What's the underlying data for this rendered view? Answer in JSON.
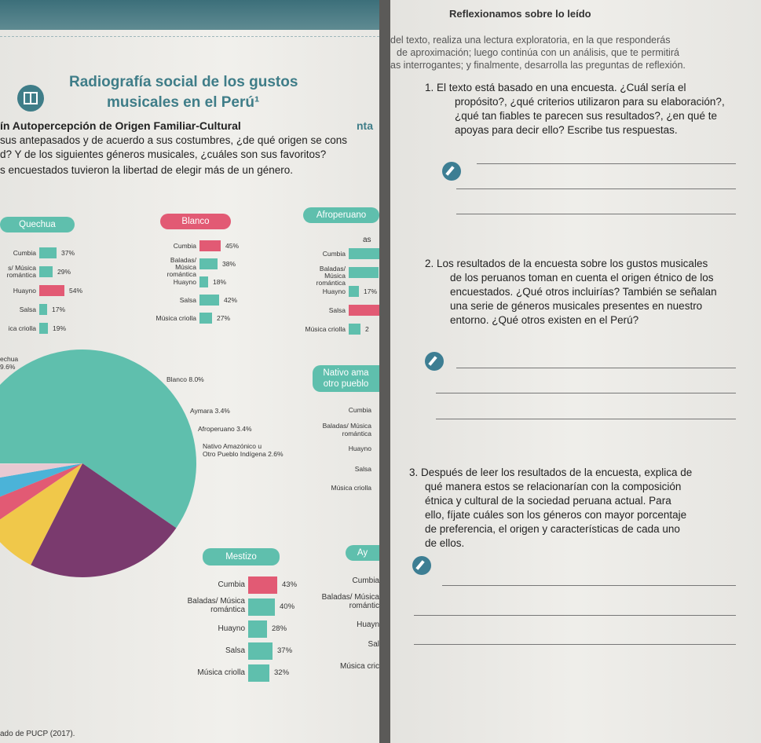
{
  "left": {
    "title_line1": "Radiografía social de los gustos",
    "title_line2": "musicales en el Perú¹",
    "section_heading": "ín Autopercepción de Origen Familiar-Cultural",
    "question_line1": "sus antepasados y de acuerdo a sus costumbres, ¿de qué origen se cons",
    "question_line2": "d? Y de los siguientes géneros musicales, ¿cuáles son sus favoritos?",
    "note": "s encuestados tuvieron la libertad de elegir más de un género.",
    "nta_fragment": "nta",
    "as_fragment": "as",
    "groups": {
      "quechua": {
        "title": "Quechua",
        "items": [
          {
            "label": "Cumbia",
            "value": "37%",
            "pct": 37
          },
          {
            "label": "s/ Música romántica",
            "value": "29%",
            "pct": 29
          },
          {
            "label": "Huayno",
            "value": "54%",
            "pct": 54
          },
          {
            "label": "Salsa",
            "value": "17%",
            "pct": 17
          },
          {
            "label": "ica criolla",
            "value": "19%",
            "pct": 19
          }
        ]
      },
      "blanco": {
        "title": "Blanco",
        "items": [
          {
            "label": "Cumbia",
            "value": "45%",
            "pct": 45
          },
          {
            "label": "Baladas/ Música romántica",
            "value": "38%",
            "pct": 38
          },
          {
            "label": "Huayno",
            "value": "18%",
            "pct": 18
          },
          {
            "label": "Salsa",
            "value": "42%",
            "pct": 42
          },
          {
            "label": "Música criolla",
            "value": "27%",
            "pct": 27
          }
        ]
      },
      "afroperuano": {
        "title": "Afroperuano",
        "items": [
          {
            "label": "Cumbia",
            "value": "",
            "pct": 52
          },
          {
            "label": "Baladas/ Música romántica",
            "value": "",
            "pct": 50
          },
          {
            "label": "Huayno",
            "value": "17%",
            "pct": 17
          },
          {
            "label": "Salsa",
            "value": "",
            "pct": 60
          },
          {
            "label": "Música criolla",
            "value": "2",
            "pct": 20
          }
        ]
      },
      "nativo": {
        "title_line1": "Nativo ama",
        "title_line2": "otro pueblo",
        "labels": [
          "Cumbia",
          "Baladas/ Música romántica",
          "Huayno",
          "Salsa",
          "Música criolla"
        ]
      },
      "mestizo": {
        "title": "Mestizo",
        "items": [
          {
            "label": "Cumbia",
            "value": "43%",
            "pct": 43
          },
          {
            "label": "Baladas/ Música romántica",
            "value": "40%",
            "pct": 40
          },
          {
            "label": "Huayno",
            "value": "28%",
            "pct": 28
          },
          {
            "label": "Salsa",
            "value": "37%",
            "pct": 37
          },
          {
            "label": "Música criolla",
            "value": "32%",
            "pct": 32
          }
        ]
      },
      "aymara": {
        "title": "Ay",
        "labels": [
          "Cumbia",
          "Baladas/ Música romántic",
          "Huayn",
          "Sal",
          "Música cric"
        ]
      }
    },
    "pie": {
      "quechua_label_line1": "echua",
      "quechua_label_line2": "9.6%",
      "labels": [
        "Blanco 8.0%",
        "Aymara 3.4%",
        "Afroperuano 3.4%",
        "Nativo Amazónico u",
        "Otro Pueblo Indígena 2.6%"
      ],
      "slices": [
        {
          "name": "Mestizo",
          "pct": 59.6,
          "color": "#5fbfad"
        },
        {
          "name": "Quechua",
          "pct": 22.9,
          "color": "#7a3a6e"
        },
        {
          "name": "Blanco",
          "pct": 8.0,
          "color": "#f0c84a"
        },
        {
          "name": "Aymara",
          "pct": 3.4,
          "color": "#e25a74"
        },
        {
          "name": "Afroperuano",
          "pct": 3.4,
          "color": "#4bb3d8"
        },
        {
          "name": "Nativo",
          "pct": 2.6,
          "color": "#e8c9d2"
        }
      ]
    },
    "source": "ado de PUCP (2017)."
  },
  "right": {
    "heading": "Reflexionamos sobre lo leído",
    "intro_line1": "del texto, realiza una lectura exploratoria, en la que responderás",
    "intro_line2": "de aproximación; luego continúa con un análisis, que te permitirá",
    "intro_line3": "as interrogantes; y finalmente, desarrolla las preguntas de reflexión.",
    "q1_line1": "1. El texto está basado en una encuesta. ¿Cuál sería el",
    "q1_line2": "propósito?, ¿qué criterios utilizaron para su elaboración?,",
    "q1_line3": "¿qué tan fiables te parecen sus resultados?, ¿en qué te",
    "q1_line4": "apoyas para decir ello? Escribe tus respuestas.",
    "q2_line1": "2. Los resultados de la encuesta sobre los gustos musicales",
    "q2_line2": "de los peruanos toman en cuenta el origen étnico de los",
    "q2_line3": "encuestados. ¿Qué otros incluirías? También se señalan",
    "q2_line4": "una serie de géneros musicales presentes en nuestro",
    "q2_line5": "entorno. ¿Qué otros existen en el Perú?",
    "q3_line1": "3. Después de leer los resultados de la encuesta, explica de",
    "q3_line2": "qué manera estos se relacionarían con la composición",
    "q3_line3": "étnica y cultural de la sociedad peruana actual. Para",
    "q3_line4": "ello, fíjate cuáles son los géneros con mayor porcentaje",
    "q3_line5": "de preferencia, el origen y características de cada uno",
    "q3_line6": "de ellos."
  },
  "colors": {
    "teal": "#5fbfad",
    "pink": "#e25a74",
    "title": "#3f7d88"
  }
}
